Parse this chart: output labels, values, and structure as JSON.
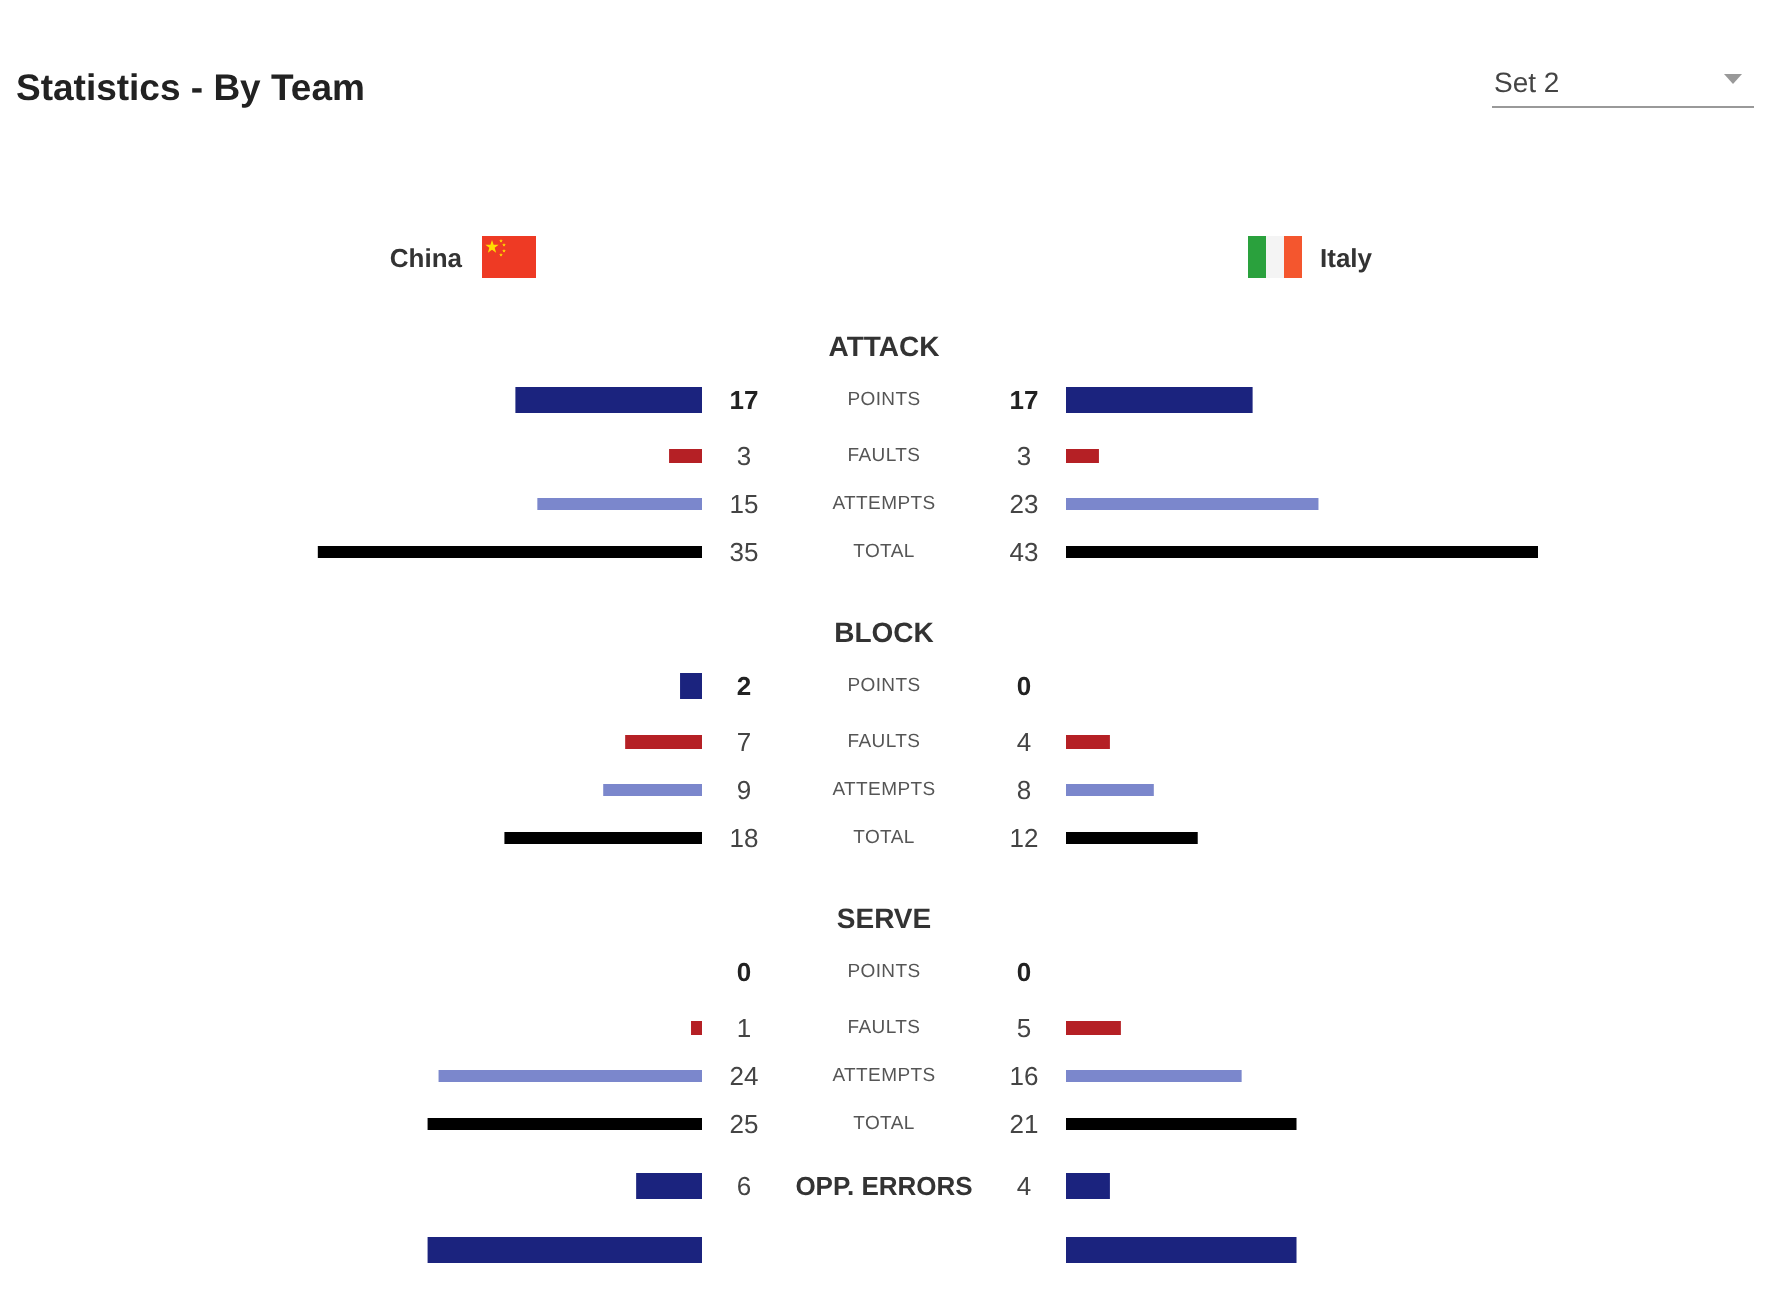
{
  "chart_data": [
    {
      "type": "bar",
      "orientation": "horizontal",
      "title": "Statistics - By Team",
      "legend": "top",
      "categories": [
        "ATTACK",
        "POINTS",
        "FAULTS",
        "ATTEMPTS",
        "TOTAL",
        "BLOCK",
        "POINTS",
        "FAULTS",
        "ATTEMPTS",
        "TOTAL",
        "SERVE",
        "POINTS",
        "FAULTS",
        "ATTEMPTS",
        "TOTAL",
        "OPP. ERRORS",
        null
      ],
      "series": [
        {
          "name": "China",
          "colors": [
            null,
            "#1b237e",
            "#b52025",
            "#7b87cc",
            "#000000",
            null,
            "#1b237e",
            "#b52025",
            "#7b87cc",
            "#000000",
            null,
            "#1b237e",
            "#b52025",
            "#7b87cc",
            "#000000",
            "#1b237e",
            "#1b237e"
          ],
          "values": [
            null,
            17,
            3,
            15,
            35,
            null,
            2,
            7,
            9,
            18,
            null,
            0,
            1,
            24,
            25,
            6,
            25
          ],
          "value_labels": [
            null,
            "17",
            "3",
            "15",
            "35",
            null,
            "2",
            "7",
            "9",
            "18",
            null,
            "0",
            "1",
            "24",
            "25",
            "6",
            null
          ]
        }
      ]
    },
    {
      "type": "bar",
      "orientation": "horizontal",
      "subtitle": "Set 2",
      "legend": "top",
      "categories": [
        null,
        null,
        null,
        null,
        null,
        null,
        null,
        null,
        null,
        null,
        null,
        null,
        null,
        null,
        null,
        null,
        null
      ],
      "series": [
        {
          "name": "Italy",
          "colors": [
            null,
            "#1b237e",
            "#b52025",
            "#7b87cc",
            "#000000",
            null,
            "#1b237e",
            "#b52025",
            "#7b87cc",
            "#000000",
            null,
            "#1b237e",
            "#b52025",
            "#7b87cc",
            "#000000",
            "#1b237e",
            "#1b237e"
          ],
          "values": [
            null,
            17,
            3,
            23,
            43,
            null,
            0,
            4,
            8,
            12,
            null,
            0,
            5,
            16,
            21,
            4,
            21
          ],
          "value_labels": [
            null,
            "17",
            "3",
            "23",
            "43",
            null,
            "0",
            "4",
            "8",
            "12",
            null,
            "0",
            "5",
            "16",
            "21",
            "4",
            null
          ]
        }
      ]
    }
  ]
}
